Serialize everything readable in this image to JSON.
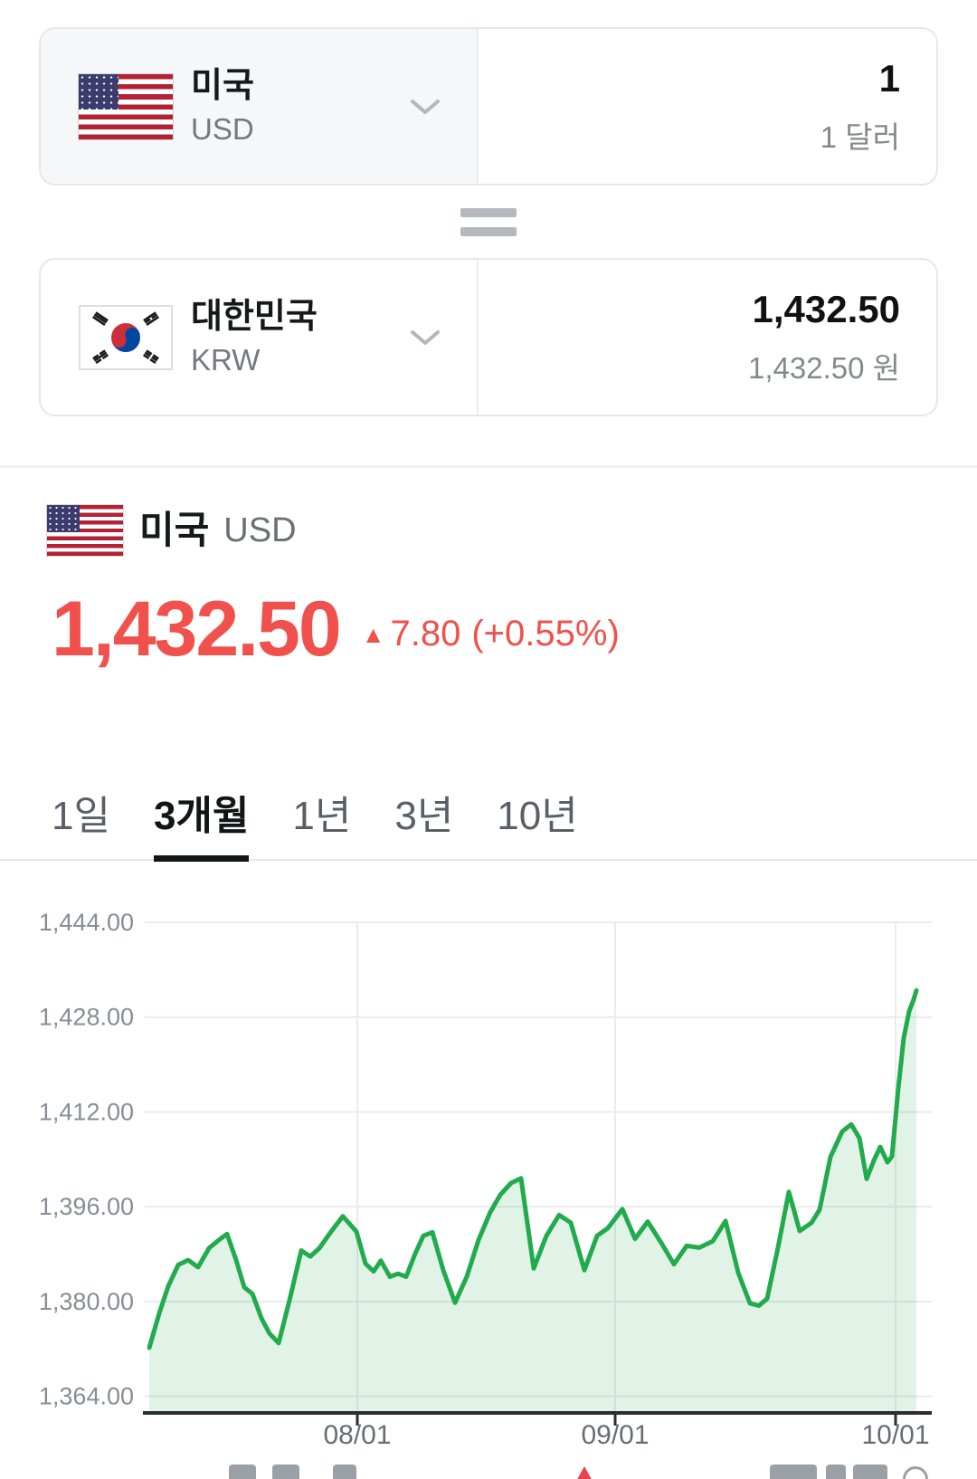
{
  "converter": {
    "from_card": {
      "flag": "us-flag-icon",
      "country": "미국",
      "currency_code": "USD",
      "amount": "1",
      "amount_in_words": "1 달러"
    },
    "to_card": {
      "flag": "kr-flag-icon",
      "country": "대한민국",
      "currency_code": "KRW",
      "amount": "1,432.50",
      "amount_in_words": "1,432.50 원"
    }
  },
  "quote": {
    "flag": "us-flag-icon",
    "country": "미국",
    "currency_code": "USD",
    "price": "1,432.50",
    "change_arrow": "▲",
    "change_value": "7.80",
    "change_percent": "(+0.55%)"
  },
  "period_tabs": {
    "items": [
      {
        "label": "1일",
        "active": false
      },
      {
        "label": "3개월",
        "active": true
      },
      {
        "label": "1년",
        "active": false
      },
      {
        "label": "3년",
        "active": false
      },
      {
        "label": "10년",
        "active": false
      }
    ]
  },
  "colors": {
    "price_up_red": "#f0514c",
    "chart_line_green": "#21ab4d",
    "chart_fill_green": "rgba(46,171,77,0.14)",
    "gridline": "#e9ebee",
    "axis": "#2b2e33"
  },
  "chart_data": {
    "type": "area",
    "series_name": "USD/KRW",
    "period": "3개월",
    "grid": true,
    "y_axis": {
      "tick_labels": [
        "1,444.00",
        "1,428.00",
        "1,412.00",
        "1,396.00",
        "1,380.00",
        "1,364.00"
      ],
      "tick_values": [
        1444,
        1428,
        1412,
        1396,
        1380,
        1364
      ],
      "min": 1364,
      "max": 1444
    },
    "x_axis": {
      "tick_labels": [
        "08/01",
        "09/01",
        "10/01"
      ],
      "tick_x": [
        395,
        680,
        990
      ]
    },
    "last_value": 1432.5,
    "points": [
      [
        165,
        1372.2
      ],
      [
        176,
        1378.0
      ],
      [
        186,
        1382.6
      ],
      [
        197,
        1386.2
      ],
      [
        208,
        1387.0
      ],
      [
        219,
        1385.8
      ],
      [
        231,
        1389.0
      ],
      [
        242,
        1390.4
      ],
      [
        251,
        1391.4
      ],
      [
        261,
        1387.0
      ],
      [
        270,
        1382.4
      ],
      [
        279,
        1381.3
      ],
      [
        289,
        1377.2
      ],
      [
        298,
        1374.6
      ],
      [
        308,
        1373.0
      ],
      [
        320,
        1380.2
      ],
      [
        333,
        1388.6
      ],
      [
        343,
        1387.6
      ],
      [
        353,
        1389.0
      ],
      [
        366,
        1391.8
      ],
      [
        379,
        1394.4
      ],
      [
        394,
        1391.8
      ],
      [
        404,
        1386.4
      ],
      [
        413,
        1385.1
      ],
      [
        421,
        1386.9
      ],
      [
        431,
        1384.2
      ],
      [
        440,
        1384.7
      ],
      [
        449,
        1384.2
      ],
      [
        459,
        1388.1
      ],
      [
        468,
        1391.1
      ],
      [
        478,
        1391.7
      ],
      [
        490,
        1385.3
      ],
      [
        503,
        1379.8
      ],
      [
        516,
        1384.2
      ],
      [
        529,
        1390.4
      ],
      [
        542,
        1395.1
      ],
      [
        553,
        1398.0
      ],
      [
        565,
        1400.0
      ],
      [
        576,
        1400.8
      ],
      [
        590,
        1385.6
      ],
      [
        604,
        1391.1
      ],
      [
        618,
        1394.6
      ],
      [
        631,
        1393.3
      ],
      [
        646,
        1385.3
      ],
      [
        660,
        1391.1
      ],
      [
        672,
        1392.4
      ],
      [
        688,
        1395.6
      ],
      [
        702,
        1390.6
      ],
      [
        716,
        1393.5
      ],
      [
        731,
        1389.9
      ],
      [
        745,
        1386.3
      ],
      [
        759,
        1389.4
      ],
      [
        773,
        1389.1
      ],
      [
        788,
        1390.2
      ],
      [
        802,
        1393.6
      ],
      [
        816,
        1384.9
      ],
      [
        829,
        1379.7
      ],
      [
        839,
        1379.3
      ],
      [
        848,
        1380.5
      ],
      [
        860,
        1389.1
      ],
      [
        872,
        1398.5
      ],
      [
        884,
        1391.9
      ],
      [
        897,
        1393.3
      ],
      [
        906,
        1395.5
      ],
      [
        918,
        1404.4
      ],
      [
        931,
        1408.7
      ],
      [
        941,
        1409.9
      ],
      [
        950,
        1407.6
      ],
      [
        958,
        1400.7
      ],
      [
        966,
        1403.8
      ],
      [
        973,
        1406.1
      ],
      [
        981,
        1403.5
      ],
      [
        986,
        1404.5
      ],
      [
        993,
        1416.0
      ],
      [
        999,
        1424.5
      ],
      [
        1005,
        1429.0
      ],
      [
        1010,
        1431.0
      ],
      [
        1013,
        1432.5
      ]
    ]
  }
}
